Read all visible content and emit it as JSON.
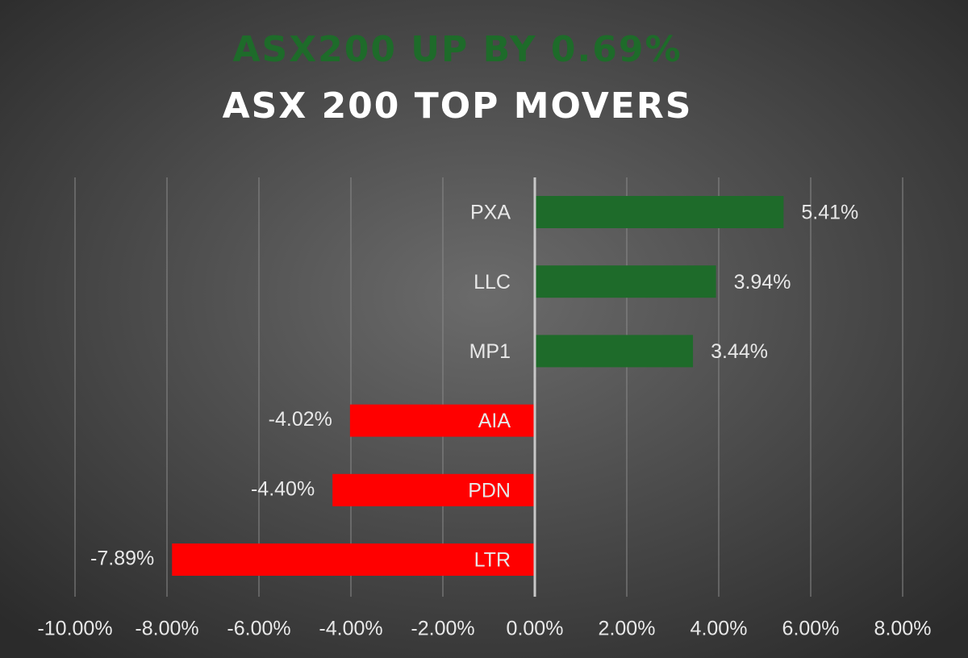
{
  "chart_data": {
    "type": "bar",
    "orientation": "horizontal",
    "title": "ASX200 UP BY 0.69%",
    "title_color": "#1e6b2a",
    "subtitle": "ASX 200 TOP MOVERS",
    "categories": [
      "PXA",
      "LLC",
      "MP1",
      "AIA",
      "PDN",
      "LTR"
    ],
    "values": [
      5.41,
      3.94,
      3.44,
      -4.02,
      -4.4,
      -7.89
    ],
    "value_labels": [
      "5.41%",
      "3.94%",
      "3.44%",
      "-4.02%",
      "-4.40%",
      "-7.89%"
    ],
    "colors": [
      "#1e6b2a",
      "#1e6b2a",
      "#1e6b2a",
      "#ff0000",
      "#ff0000",
      "#ff0000"
    ],
    "xlim": [
      -10,
      8
    ],
    "xticks": [
      {
        "value": -10,
        "label": "-10.00%"
      },
      {
        "value": -8,
        "label": "-8.00%"
      },
      {
        "value": -6,
        "label": "-6.00%"
      },
      {
        "value": -4,
        "label": "-4.00%"
      },
      {
        "value": -2,
        "label": "-2.00%"
      },
      {
        "value": 0,
        "label": "0.00%"
      },
      {
        "value": 2,
        "label": "2.00%"
      },
      {
        "value": 4,
        "label": "4.00%"
      },
      {
        "value": 6,
        "label": "6.00%"
      },
      {
        "value": 8,
        "label": "8.00%"
      }
    ],
    "grid": true
  }
}
